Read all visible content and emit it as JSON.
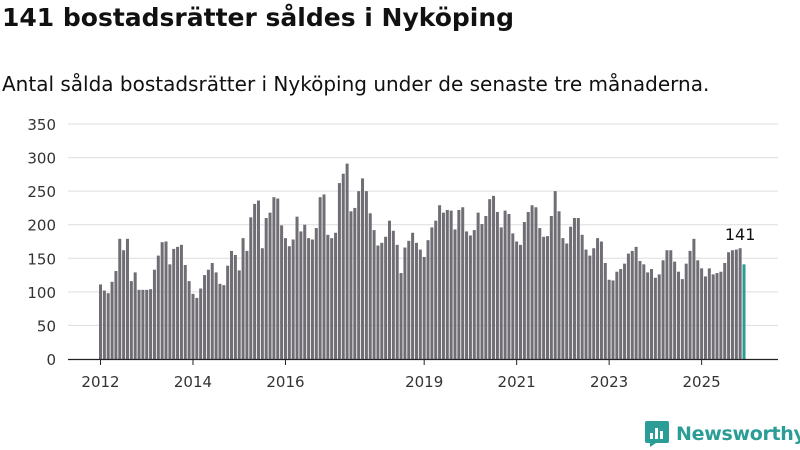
{
  "page": {
    "title": "141 bostadsrätter såldes i Nyköping",
    "subtitle": "Antal sålda bostadsrätter i Nyköping under de senaste tre månaderna."
  },
  "brand": {
    "name": "Newsworthy",
    "icon": "newsworthy-logo-icon"
  },
  "colors": {
    "bar": "#706e74",
    "highlight": "#2a9d96",
    "grid": "#dddddd",
    "axis": "#222222",
    "text": "#333333"
  },
  "chart_data": {
    "type": "bar",
    "title": "141 bostadsrätter såldes i Nyköping",
    "subtitle": "Antal sålda bostadsrätter i Nyköping under de senaste tre månaderna.",
    "xlabel": "",
    "ylabel": "",
    "ylim": [
      0,
      350
    ],
    "yticks": [
      0,
      50,
      100,
      150,
      200,
      250,
      300,
      350
    ],
    "xticks": [
      {
        "label": "2012",
        "index": 0
      },
      {
        "label": "2014",
        "index": 24
      },
      {
        "label": "2016",
        "index": 48
      },
      {
        "label": "2019",
        "index": 84
      },
      {
        "label": "2021",
        "index": 108
      },
      {
        "label": "2023",
        "index": 132
      },
      {
        "label": "2025",
        "index": 156
      }
    ],
    "grid": true,
    "start": "2012-01",
    "highlight_index": 167,
    "annotation": {
      "label": "141",
      "index": 167
    },
    "values": [
      111,
      102,
      98,
      115,
      131,
      179,
      162,
      179,
      116,
      129,
      103,
      103,
      103,
      104,
      133,
      154,
      174,
      175,
      141,
      164,
      167,
      170,
      140,
      116,
      97,
      91,
      105,
      125,
      133,
      143,
      129,
      112,
      110,
      139,
      161,
      155,
      132,
      180,
      161,
      211,
      231,
      236,
      165,
      210,
      218,
      241,
      239,
      199,
      180,
      168,
      178,
      212,
      190,
      200,
      180,
      178,
      195,
      241,
      245,
      185,
      180,
      188,
      262,
      276,
      291,
      220,
      225,
      250,
      269,
      250,
      217,
      192,
      169,
      173,
      182,
      206,
      191,
      170,
      128,
      166,
      176,
      188,
      173,
      163,
      152,
      177,
      196,
      206,
      229,
      218,
      222,
      221,
      193,
      222,
      226,
      190,
      184,
      192,
      218,
      201,
      213,
      238,
      243,
      219,
      196,
      221,
      216,
      187,
      175,
      170,
      204,
      219,
      229,
      226,
      195,
      182,
      183,
      213,
      250,
      220,
      180,
      172,
      197,
      210,
      210,
      185,
      163,
      154,
      165,
      180,
      175,
      143,
      118,
      117,
      130,
      134,
      142,
      157,
      161,
      167,
      146,
      141,
      129,
      134,
      121,
      126,
      147,
      162,
      162,
      145,
      130,
      119,
      142,
      161,
      179,
      147,
      135,
      123,
      135,
      126,
      128,
      130,
      143,
      159,
      162,
      163,
      165,
      141
    ]
  }
}
